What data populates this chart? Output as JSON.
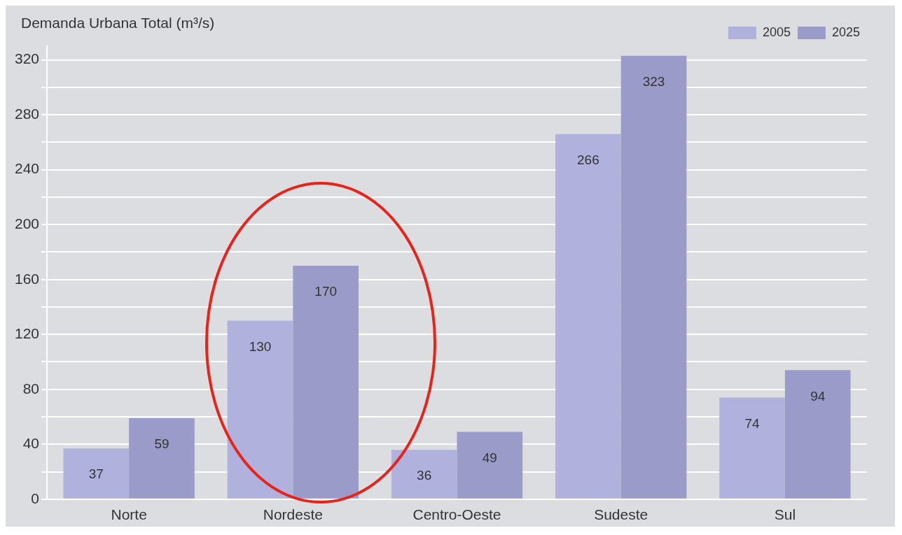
{
  "chart_data": {
    "type": "bar",
    "ylabel": "Demanda Urbana Total (m³/s)",
    "categories": [
      "Norte",
      "Nordeste",
      "Centro-Oeste",
      "Sudeste",
      "Sul"
    ],
    "series": [
      {
        "name": "2005",
        "color": "#b0b2dd",
        "values": [
          37,
          130,
          36,
          266,
          74
        ]
      },
      {
        "name": "2025",
        "color": "#9a9bc9",
        "values": [
          59,
          170,
          49,
          323,
          94
        ]
      }
    ],
    "ylim": [
      0,
      330
    ],
    "yticks": [
      0,
      {
        "value": 20,
        "label": null
      },
      40,
      {
        "value": 60,
        "label": null
      },
      80,
      {
        "value": 100,
        "label": null
      },
      120,
      {
        "value": 140,
        "label": null
      },
      160,
      {
        "value": 180,
        "label": null
      },
      200,
      {
        "value": 220,
        "label": null
      },
      240,
      {
        "value": 260,
        "label": null
      },
      280,
      {
        "value": 300,
        "label": null
      },
      320
    ],
    "grid": "y",
    "legend": "top right",
    "data_labels": true
  }
}
